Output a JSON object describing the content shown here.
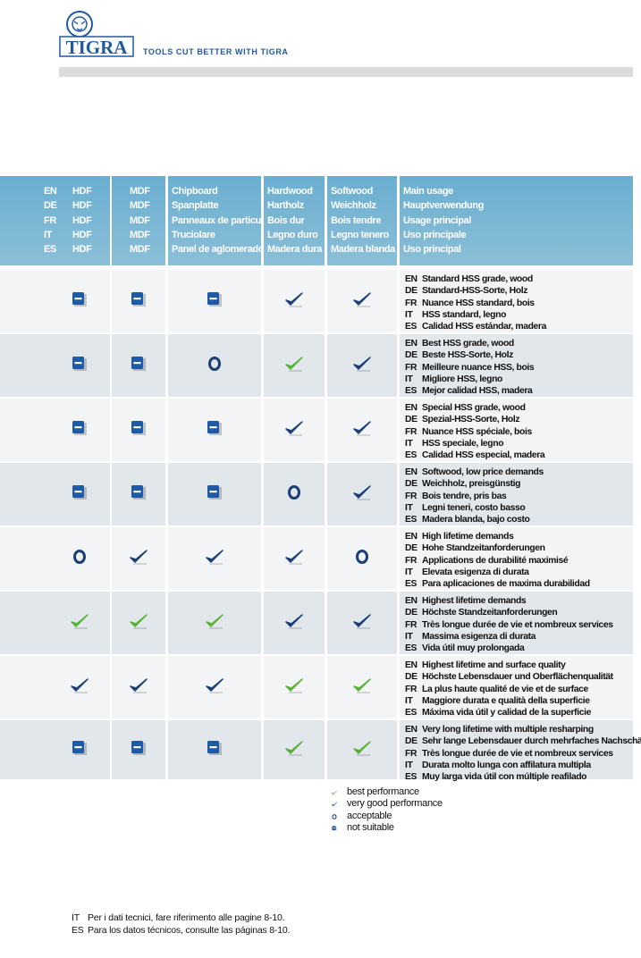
{
  "header": {
    "logo_text": "TIGRA",
    "tagline": "TOOLS CUT BETTER WITH TIGRA"
  },
  "languages": [
    "EN",
    "DE",
    "FR",
    "IT",
    "ES"
  ],
  "columns": [
    {
      "key": "hdf",
      "labels": [
        "HDF",
        "HDF",
        "HDF",
        "HDF",
        "HDF"
      ]
    },
    {
      "key": "mdf",
      "labels": [
        "MDF",
        "MDF",
        "MDF",
        "MDF",
        "MDF"
      ]
    },
    {
      "key": "chipboard",
      "labels": [
        "Chipboard",
        "Spanplatte",
        "Panneaux de particule",
        "Truciolare",
        "Panel de aglomerado"
      ]
    },
    {
      "key": "hardwood",
      "labels": [
        "Hardwood",
        "Hartholz",
        "Bois dur",
        "Legno duro",
        "Madera dura"
      ]
    },
    {
      "key": "softwood",
      "labels": [
        "Softwood",
        "Weichholz",
        "Bois tendre",
        "Legno tenero",
        "Madera blanda"
      ]
    },
    {
      "key": "usage",
      "labels": [
        "Main usage",
        "Hauptverwendung",
        "Usage principal",
        "Uso principale",
        "Uso principal"
      ]
    }
  ],
  "rows": [
    {
      "ratings": [
        "not",
        "not",
        "not",
        "very",
        "very"
      ],
      "usage": [
        "Standard HSS grade, wood",
        "Standard-HSS-Sorte, Holz",
        "Nuance HSS standard, bois",
        "HSS standard, legno",
        "Calidad HSS estándar, madera"
      ]
    },
    {
      "ratings": [
        "not",
        "not",
        "acc",
        "best",
        "very"
      ],
      "usage": [
        "Best HSS grade, wood",
        "Beste HSS-Sorte, Holz",
        "Meilleure nuance HSS, bois",
        "Migliore HSS, legno",
        "Mejor calidad HSS, madera"
      ]
    },
    {
      "ratings": [
        "not",
        "not",
        "not",
        "very",
        "very"
      ],
      "usage": [
        "Special HSS grade, wood",
        "Spezial-HSS-Sorte, Holz",
        "Nuance HSS spéciale, bois",
        "HSS speciale, legno",
        "Calidad HSS especial, madera"
      ]
    },
    {
      "ratings": [
        "not",
        "not",
        "not",
        "acc",
        "very"
      ],
      "usage": [
        "Softwood, low price demands",
        "Weichholz, preisgünstig",
        "Bois tendre, pris bas",
        "Legni teneri, costo basso",
        "Madera blanda, bajo costo"
      ]
    },
    {
      "ratings": [
        "acc",
        "very",
        "very",
        "very",
        "acc"
      ],
      "usage": [
        "High lifetime demands",
        "Hohe Standzeitanforderungen",
        "Applications de durabilité maximisé",
        "Elevata esigenza di durata",
        "Para aplicaciones de maxima durabilidad"
      ]
    },
    {
      "ratings": [
        "best",
        "best",
        "best",
        "very",
        "very"
      ],
      "usage": [
        "Highest lifetime demands",
        "Höchste Standzeitanforderungen",
        "Très longue durée de vie et nombreux services",
        "Massima esigenza di durata",
        "Vida útil muy prolongada"
      ]
    },
    {
      "ratings": [
        "very",
        "very",
        "very",
        "best",
        "best"
      ],
      "usage": [
        "Highest lifetime and surface quality",
        "Höchste Lebensdauer und Oberflächenqualität",
        "La plus haute qualité de vie et de surface",
        "Maggiore durata e qualità della superficie",
        "Máxima vida útil y calidad de la superficie"
      ]
    },
    {
      "ratings": [
        "not",
        "not",
        "not",
        "best",
        "best"
      ],
      "usage": [
        "Very long lifetime with multiple resharping",
        "Sehr lange Lebensdauer durch mehrfaches Nachschärfen",
        "Très longue durée de vie et nombreux services",
        "Durata molto lunga con affilatura multipla",
        "Muy larga vida útil con múltiple reafilado"
      ]
    }
  ],
  "legend": [
    {
      "key": "best",
      "label": "best performance"
    },
    {
      "key": "very",
      "label": "very good performance"
    },
    {
      "key": "acc",
      "label": "acceptable"
    },
    {
      "key": "not",
      "label": "not suitable"
    }
  ],
  "colors": {
    "header": "#6aaed0",
    "best": "#5bb03a",
    "very": "#1c3f73",
    "not": "#1e5aa8",
    "row_light": "#f2f4f6",
    "row_dark": "#e2e7ec"
  },
  "footer": [
    {
      "lang": "IT",
      "text": "Per i dati tecnici, fare riferimento alle pagine 8-10."
    },
    {
      "lang": "ES",
      "text": "Para los datos técnicos, consulte las páginas 8-10."
    }
  ]
}
